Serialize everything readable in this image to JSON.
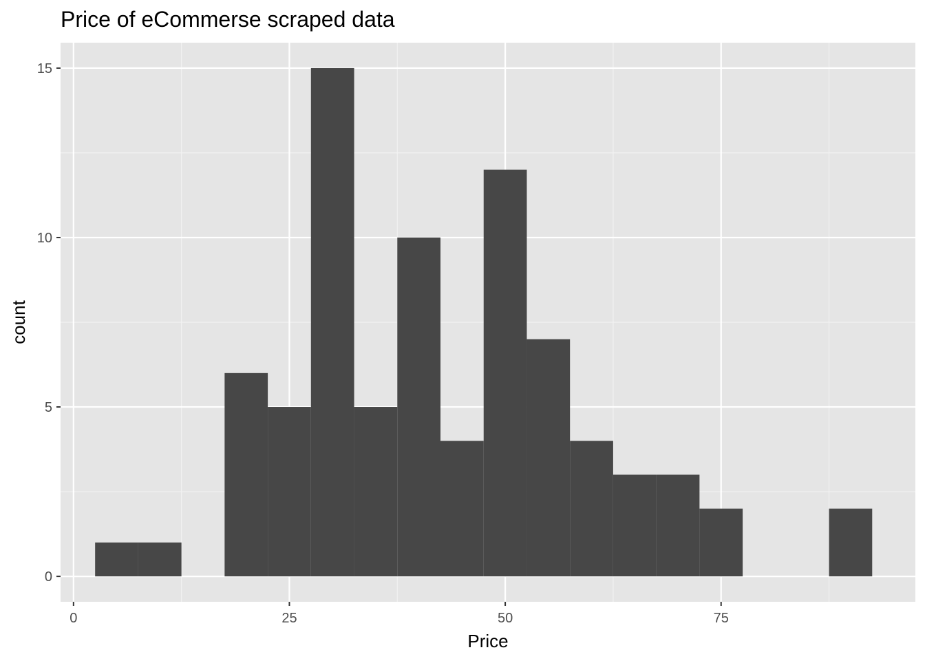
{
  "chart_data": {
    "type": "bar",
    "title": "Price of eCommerse scraped data",
    "xlabel": "Price",
    "ylabel": "count",
    "xlim": [
      -1.5,
      97.5
    ],
    "ylim": [
      -0.75,
      15.75
    ],
    "x_ticks": [
      0,
      25,
      50,
      75
    ],
    "y_ticks": [
      0,
      5,
      10,
      15
    ],
    "x_minor_ticks": [
      12.5,
      37.5,
      62.5,
      87.5
    ],
    "y_minor_ticks": [
      2.5,
      7.5,
      12.5
    ],
    "bin_width": 5,
    "bins": [
      {
        "start": 2.5,
        "end": 7.5,
        "count": 1
      },
      {
        "start": 7.5,
        "end": 12.5,
        "count": 1
      },
      {
        "start": 12.5,
        "end": 17.5,
        "count": 0
      },
      {
        "start": 17.5,
        "end": 22.5,
        "count": 6
      },
      {
        "start": 22.5,
        "end": 27.5,
        "count": 5
      },
      {
        "start": 27.5,
        "end": 32.5,
        "count": 15
      },
      {
        "start": 32.5,
        "end": 37.5,
        "count": 5
      },
      {
        "start": 37.5,
        "end": 42.5,
        "count": 10
      },
      {
        "start": 42.5,
        "end": 47.5,
        "count": 4
      },
      {
        "start": 47.5,
        "end": 52.5,
        "count": 12
      },
      {
        "start": 52.5,
        "end": 57.5,
        "count": 7
      },
      {
        "start": 57.5,
        "end": 62.5,
        "count": 4
      },
      {
        "start": 62.5,
        "end": 67.5,
        "count": 3
      },
      {
        "start": 67.5,
        "end": 72.5,
        "count": 3
      },
      {
        "start": 72.5,
        "end": 77.5,
        "count": 2
      },
      {
        "start": 77.5,
        "end": 82.5,
        "count": 0
      },
      {
        "start": 82.5,
        "end": 87.5,
        "count": 0
      },
      {
        "start": 87.5,
        "end": 92.5,
        "count": 2
      }
    ],
    "grid": true,
    "colors": {
      "panel_background": "#E5E5E5",
      "grid_major": "#FFFFFF",
      "grid_minor": "#F2F2F2",
      "bar_fill": "#474747",
      "tick_text": "#4D4D4D",
      "tick_mark": "#333333"
    }
  }
}
